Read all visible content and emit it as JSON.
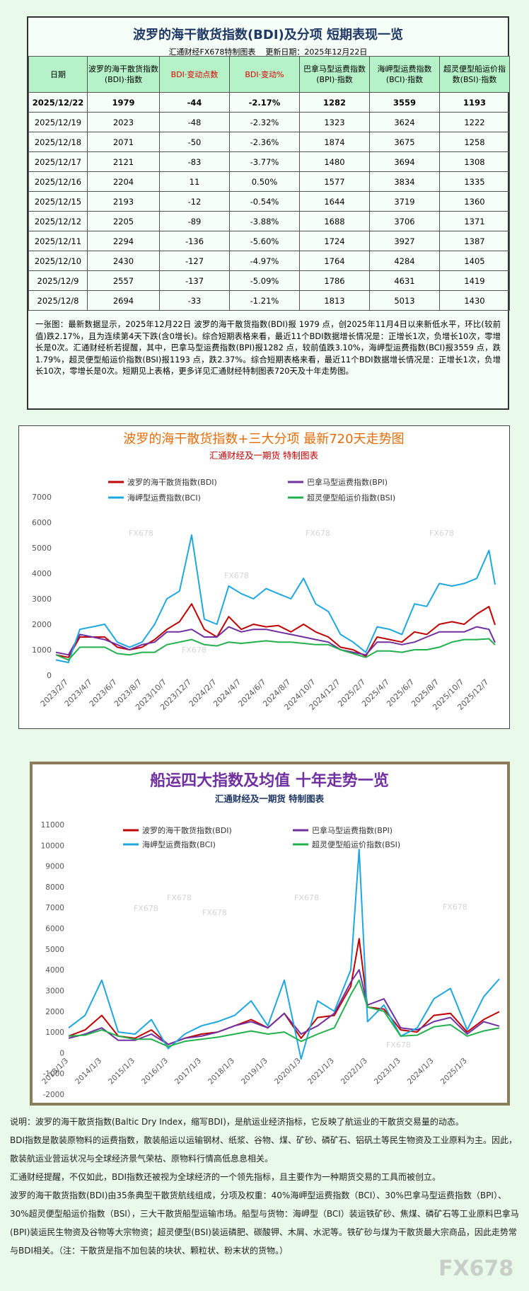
{
  "table": {
    "title": "波罗的海干散货指数(BDI)及分项  短期表现一览",
    "source": "汇通财经FX678特制图表",
    "updated": "更新日期：2025年12月22日",
    "header": [
      "日期",
      "波罗的海干散货指数(BDI)·指数",
      "BDI·变动点数",
      "BDI·变动%",
      "巴拿马型运费指数(BPI)·指数",
      "海岬型运费指数(BCI)·指数",
      "超灵便型船运价指数(BSI)·指数"
    ],
    "rows": [
      [
        "2025/12/22",
        "1979",
        "-44",
        "-2.17%",
        "1282",
        "3559",
        "1193"
      ],
      [
        "2025/12/19",
        "2023",
        "-48",
        "-2.32%",
        "1323",
        "3624",
        "1222"
      ],
      [
        "2025/12/18",
        "2071",
        "-50",
        "-2.36%",
        "1874",
        "3675",
        "1258"
      ],
      [
        "2025/12/17",
        "2121",
        "-83",
        "-3.77%",
        "1480",
        "3694",
        "1308"
      ],
      [
        "2025/12/16",
        "2204",
        "11",
        "0.50%",
        "1577",
        "3834",
        "1335"
      ],
      [
        "2025/12/15",
        "2193",
        "-12",
        "-0.54%",
        "1644",
        "3719",
        "1360"
      ],
      [
        "2025/12/12",
        "2205",
        "-89",
        "-3.88%",
        "1688",
        "3706",
        "1371"
      ],
      [
        "2025/12/11",
        "2294",
        "-136",
        "-5.60%",
        "1724",
        "3927",
        "1387"
      ],
      [
        "2025/12/10",
        "2430",
        "-127",
        "-4.97%",
        "1764",
        "4284",
        "1405"
      ],
      [
        "2025/12/9",
        "2557",
        "-137",
        "-5.09%",
        "1786",
        "4631",
        "1419"
      ],
      [
        "2025/12/8",
        "2694",
        "-33",
        "-1.21%",
        "1813",
        "5013",
        "1430"
      ]
    ]
  },
  "summary": "一张图：最新数据显示，2025年12月22日 波罗的海干散货指数(BDI)报 1979 点，创2025年11月4日以来新低水平，环比(较前值)跌2.17%，且为连续第4天下跌(含0增长)。综合短期表格来看，最近11个BDI数据增长情况是：正增长1次，负增长10次，零增长是0次。汇通财经析若提醒，其中，巴拿马型运费指数(BPI)报1282 点，较前值跌3.10%，海岬型运费指数(BCI)报3559 点，跌1.79%，超灵便型船运价指数(BSI)报1193 点，跌2.37%。综合短期表格来看，最近11个BDI数据增长情况是：正增长1次，负增长10次，零增长是0次。短期见上表格，更多详见汇通财经特制图表720天及十年走势图。",
  "chart_data": [
    {
      "type": "line",
      "title": "波罗的海干散货指数+三大分项  最新720天走势图",
      "subtitle": "汇通财经及一期货  特制图表",
      "x": [
        "2023/1/7",
        "2023/2/7",
        "2023/3/7",
        "2023/4/7",
        "2023/5/7",
        "2023/6/7",
        "2023/7/7",
        "2023/8/7",
        "2023/9/7",
        "2023/10/7",
        "2023/11/7",
        "2023/12/7",
        "2024/1/7",
        "2024/2/7",
        "2024/3/7",
        "2024/4/7",
        "2024/5/7",
        "2024/6/7",
        "2024/7/7",
        "2024/8/7",
        "2024/9/7",
        "2024/10/7",
        "2024/11/7",
        "2024/12/7",
        "2025/1/7",
        "2025/2/7",
        "2025/3/7",
        "2025/4/7",
        "2025/5/7",
        "2025/6/7",
        "2025/7/7",
        "2025/8/7",
        "2025/9/7",
        "2025/10/7",
        "2025/11/7",
        "2025/12/7",
        "2025/12/22"
      ],
      "xlim": [
        "2023/1/7",
        "2025/12/22"
      ],
      "xticks": [
        "2023/2/7",
        "2023/4/7",
        "2023/6/7",
        "2023/8/7",
        "2023/10/7",
        "2023/12/7",
        "2024/2/7",
        "2024/4/7",
        "2024/6/7",
        "2024/8/7",
        "2024/10/7",
        "2024/12/7",
        "2025/2/7",
        "2025/4/7",
        "2025/6/7",
        "2025/8/7",
        "2025/10/7",
        "2025/12/7"
      ],
      "ylim": [
        0,
        7000
      ],
      "yticks": [
        0,
        1000,
        2000,
        3000,
        4000,
        5000,
        6000,
        7000
      ],
      "series": [
        {
          "name": "波罗的海干散货指数(BDI)",
          "color": "#c00000",
          "values": [
            800,
            700,
            1500,
            1500,
            1500,
            1100,
            1000,
            1100,
            1400,
            1800,
            2100,
            2800,
            1800,
            1500,
            2300,
            1800,
            2000,
            1900,
            1950,
            1700,
            2000,
            1700,
            1500,
            1100,
            1000,
            750,
            1500,
            1400,
            1300,
            1700,
            1600,
            2000,
            2100,
            2000,
            2400,
            2694,
            1979
          ]
        },
        {
          "name": "巴拿马型运费指数(BPI)",
          "color": "#7030a0",
          "values": [
            900,
            800,
            1600,
            1500,
            1400,
            1200,
            1000,
            1200,
            1300,
            1700,
            1700,
            1800,
            1500,
            1500,
            1900,
            1700,
            1800,
            1800,
            1700,
            1600,
            1500,
            1400,
            1300,
            1000,
            900,
            800,
            1300,
            1300,
            1200,
            1300,
            1500,
            1700,
            1700,
            1700,
            1900,
            1800,
            1282
          ]
        },
        {
          "name": "海岬型运费指数(BCI)",
          "color": "#1ea7e1",
          "values": [
            600,
            500,
            1800,
            1900,
            2000,
            1300,
            1100,
            1300,
            2000,
            3000,
            3300,
            5500,
            2200,
            2000,
            3500,
            3200,
            3000,
            3400,
            3200,
            3000,
            3800,
            2800,
            2500,
            1600,
            1300,
            900,
            1900,
            1800,
            1600,
            2800,
            2700,
            3600,
            3500,
            3600,
            3800,
            4900,
            3559
          ]
        },
        {
          "name": "超灵便型船运价指数(BSI)",
          "color": "#22b14c",
          "values": [
            800,
            600,
            1100,
            1100,
            1100,
            850,
            800,
            900,
            900,
            1200,
            1300,
            1400,
            1200,
            1150,
            1300,
            1250,
            1300,
            1350,
            1300,
            1300,
            1250,
            1200,
            1200,
            1000,
            850,
            700,
            950,
            950,
            900,
            1000,
            1000,
            1100,
            1300,
            1400,
            1400,
            1430,
            1193
          ]
        }
      ]
    },
    {
      "type": "line",
      "title": "船运四大指数及均值 十年走势一览",
      "subtitle": "汇通财经及一期货 特制图表",
      "x": [
        "2013/1/3",
        "2013/7/3",
        "2014/1/3",
        "2014/7/3",
        "2015/1/3",
        "2015/7/3",
        "2016/1/3",
        "2016/7/3",
        "2017/1/3",
        "2017/7/3",
        "2018/1/3",
        "2018/7/3",
        "2019/1/3",
        "2019/7/3",
        "2020/1/3",
        "2020/7/3",
        "2021/1/3",
        "2021/7/3",
        "2021/10/3",
        "2022/1/3",
        "2022/7/3",
        "2023/1/3",
        "2023/7/3",
        "2024/1/3",
        "2024/7/3",
        "2025/1/3",
        "2025/7/3",
        "2025/12/22"
      ],
      "xlim": [
        "2013/1/3",
        "2025/12/22"
      ],
      "xticks": [
        "2013/1/3",
        "2014/1/3",
        "2015/1/3",
        "2016/1/3",
        "2017/1/3",
        "2018/1/3",
        "2019/1/3",
        "2020/1/3",
        "2021/1/3",
        "2022/1/3",
        "2023/1/3",
        "2024/1/3",
        "2025/1/3"
      ],
      "ylim": [
        -2000,
        11000
      ],
      "yticks": [
        -2000,
        -1000,
        0,
        1000,
        2000,
        3000,
        4000,
        5000,
        6000,
        7000,
        8000,
        9000,
        10000,
        11000
      ],
      "series": [
        {
          "name": "波罗的海干散货指数(BDI)",
          "color": "#c00000",
          "values": [
            800,
            1100,
            1800,
            800,
            700,
            1100,
            400,
            700,
            900,
            1000,
            1300,
            1600,
            1200,
            1900,
            700,
            1700,
            1800,
            3200,
            5500,
            2200,
            2100,
            1100,
            1000,
            1800,
            1900,
            1000,
            1600,
            1979
          ]
        },
        {
          "name": "巴拿马型运费指数(BPI)",
          "color": "#7030a0",
          "values": [
            700,
            900,
            1200,
            600,
            600,
            900,
            400,
            700,
            800,
            1000,
            1300,
            1500,
            1200,
            1900,
            900,
            1300,
            1900,
            3400,
            4000,
            2300,
            2600,
            1200,
            1100,
            1500,
            1700,
            900,
            1500,
            1282
          ]
        },
        {
          "name": "海岬型运费指数(BCI)",
          "color": "#1ea7e1",
          "values": [
            1200,
            1800,
            3500,
            1000,
            900,
            1600,
            200,
            900,
            1300,
            1500,
            1800,
            2500,
            1300,
            3500,
            -300,
            2500,
            2000,
            4000,
            9800,
            1500,
            2300,
            800,
            1200,
            2600,
            3100,
            1100,
            2700,
            3559
          ]
        },
        {
          "name": "超灵便型船运价指数(BSI)",
          "color": "#22b14c",
          "values": [
            800,
            850,
            1100,
            800,
            650,
            650,
            300,
            550,
            650,
            750,
            900,
            1050,
            900,
            1000,
            550,
            900,
            1200,
            2800,
            3500,
            2200,
            2000,
            800,
            850,
            1250,
            1350,
            800,
            1050,
            1193
          ]
        }
      ]
    }
  ],
  "notes": [
    "说明：波罗的海干散货指数(Baltic Dry Index，缩写BDI)，是航运业经济指标，它反映了航运业的干散货交易量的动态。",
    "BDI指数是散装原物料的运费指数，散装船运以运输钢材、纸浆、谷物、煤、矿砂、磷矿石、铝矾土等民生物资及工业原料为主。因此，散装航运业营运状况与全球经济景气荣枯、原物料行情高低息息相关。",
    "汇通财经提醒，不仅如此，BDI指数还被视为全球经济的一个领先指标，且主要作为一种期货交易的工具而被创立。",
    "波罗的海干散货指数(BDI)由35条典型干散货航线组成，分项及权重：40%海岬型运费指数（BCI）、30%巴拿马型运费指数（BPI）、30%超灵便型船运价指数（BSI），三大干散货船型运输市场。船型与货物：海岬型（BCI）装运铁矿砂、焦煤、磷矿石等工业原料巴拿马(BPI)装运民生物资及谷物等大宗物资；超灵便型(BSI)装运磷肥、碳酸钾、木屑、水泥等。铁矿砂与煤为干散货最大宗商品，因此走势常与BDI相关。（注：干散货是指不加包装的块状、颗粒状、粉末状的货物。）"
  ],
  "watermark": "FX678"
}
